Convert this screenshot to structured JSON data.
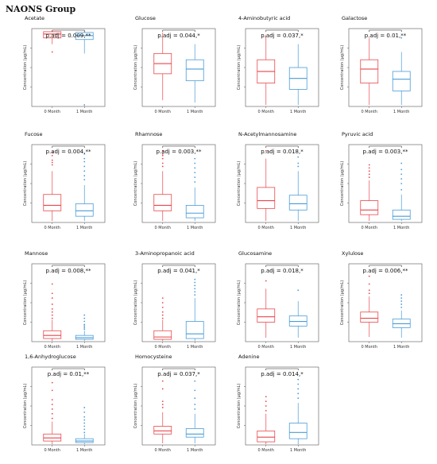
{
  "page_title": "NAONS Group",
  "colors": {
    "month0": "#e8474b",
    "month1": "#4a9cd6",
    "axis": "#333333",
    "bracket": "#222222"
  },
  "chart_data": [
    {
      "type": "box",
      "title": "Acetate",
      "ylabel": "Concentration (µg/mL)",
      "categories": [
        "0 Month",
        "1 Month"
      ],
      "annotation": "p.adj = 0.009,**",
      "ylim": [
        0,
        1
      ],
      "boxes": [
        {
          "q1": 0.88,
          "median": 0.93,
          "q3": 0.96,
          "wlo": 0.8,
          "whi": 0.98,
          "outliers": [
            0.7
          ]
        },
        {
          "q1": 0.86,
          "median": 0.91,
          "q3": 0.95,
          "wlo": 0.68,
          "whi": 0.98,
          "outliers": [
            0.02
          ]
        }
      ]
    },
    {
      "type": "box",
      "title": "Glucose",
      "ylabel": "Concentration (µg/mL)",
      "categories": [
        "0 Month",
        "1 Month"
      ],
      "annotation": "p.adj = 0.044,*",
      "ylim": [
        0,
        1
      ],
      "boxes": [
        {
          "q1": 0.42,
          "median": 0.55,
          "q3": 0.68,
          "wlo": 0.08,
          "whi": 0.95,
          "outliers": []
        },
        {
          "q1": 0.33,
          "median": 0.48,
          "q3": 0.6,
          "wlo": 0.05,
          "whi": 0.8,
          "outliers": []
        }
      ]
    },
    {
      "type": "box",
      "title": "4-Aminobutyric acid",
      "ylabel": "Concentration (µg/mL)",
      "categories": [
        "0 Month",
        "1 Month"
      ],
      "annotation": "p.adj = 0.037,*",
      "ylim": [
        0,
        1
      ],
      "boxes": [
        {
          "q1": 0.3,
          "median": 0.45,
          "q3": 0.6,
          "wlo": 0.02,
          "whi": 0.92,
          "outliers": []
        },
        {
          "q1": 0.22,
          "median": 0.36,
          "q3": 0.5,
          "wlo": 0.02,
          "whi": 0.8,
          "outliers": []
        }
      ]
    },
    {
      "type": "box",
      "title": "Galactose",
      "ylabel": "Concentration (µg/mL)",
      "categories": [
        "0 Month",
        "1 Month"
      ],
      "annotation": "p.adj = 0.01,**",
      "ylim": [
        0,
        1
      ],
      "boxes": [
        {
          "q1": 0.3,
          "median": 0.48,
          "q3": 0.6,
          "wlo": 0.02,
          "whi": 0.88,
          "outliers": []
        },
        {
          "q1": 0.2,
          "median": 0.35,
          "q3": 0.45,
          "wlo": 0.02,
          "whi": 0.7,
          "outliers": [
            0.88
          ]
        }
      ]
    },
    {
      "type": "box",
      "title": "Fucose",
      "ylabel": "Concentration (µg/mL)",
      "categories": [
        "0 Month",
        "1 Month"
      ],
      "annotation": "p.adj = 0.004,**",
      "ylim": [
        0,
        1
      ],
      "boxes": [
        {
          "q1": 0.15,
          "median": 0.22,
          "q3": 0.36,
          "wlo": 0.02,
          "whi": 0.66,
          "outliers": [
            0.74,
            0.77,
            0.8,
            0.86,
            0.9
          ]
        },
        {
          "q1": 0.08,
          "median": 0.15,
          "q3": 0.24,
          "wlo": 0.02,
          "whi": 0.48,
          "outliers": [
            0.55,
            0.6,
            0.66,
            0.72,
            0.78,
            0.82,
            0.88
          ]
        }
      ]
    },
    {
      "type": "box",
      "title": "Rhamnose",
      "ylabel": "Concentration (µg/mL)",
      "categories": [
        "0 Month",
        "1 Month"
      ],
      "annotation": "p.adj = 0.003,**",
      "ylim": [
        0,
        1
      ],
      "boxes": [
        {
          "q1": 0.15,
          "median": 0.22,
          "q3": 0.36,
          "wlo": 0.02,
          "whi": 0.66,
          "outliers": [
            0.72,
            0.76,
            0.82,
            0.86,
            0.88,
            0.92
          ]
        },
        {
          "q1": 0.06,
          "median": 0.12,
          "q3": 0.22,
          "wlo": 0.02,
          "whi": 0.45,
          "outliers": [
            0.52,
            0.58,
            0.64,
            0.7,
            0.76,
            0.82
          ]
        }
      ]
    },
    {
      "type": "box",
      "title": "N-Acetylmannosamine",
      "ylabel": "Concentration (µg/mL)",
      "categories": [
        "0 Month",
        "1 Month"
      ],
      "annotation": "p.adj = 0.018,*",
      "ylim": [
        0,
        1
      ],
      "boxes": [
        {
          "q1": 0.18,
          "median": 0.28,
          "q3": 0.45,
          "wlo": 0.02,
          "whi": 0.82,
          "outliers": [
            0.92
          ]
        },
        {
          "q1": 0.16,
          "median": 0.24,
          "q3": 0.35,
          "wlo": 0.02,
          "whi": 0.66,
          "outliers": [
            0.72,
            0.76,
            0.84
          ]
        }
      ]
    },
    {
      "type": "box",
      "title": "Pyruvic acid",
      "ylabel": "Concentration (µg/mL)",
      "categories": [
        "0 Month",
        "1 Month"
      ],
      "annotation": "p.adj = 0.003,**",
      "ylim": [
        0,
        1
      ],
      "boxes": [
        {
          "q1": 0.1,
          "median": 0.16,
          "q3": 0.28,
          "wlo": 0.02,
          "whi": 0.54,
          "outliers": [
            0.58,
            0.62,
            0.66,
            0.7,
            0.74
          ]
        },
        {
          "q1": 0.04,
          "median": 0.08,
          "q3": 0.16,
          "wlo": 0.02,
          "whi": 0.36,
          "outliers": [
            0.42,
            0.5,
            0.56,
            0.62,
            0.68,
            0.76
          ]
        }
      ]
    },
    {
      "type": "box",
      "title": "Mannose",
      "ylabel": "Concentration (µg/mL)",
      "categories": [
        "0 Month",
        "1 Month"
      ],
      "annotation": "p.adj = 0.008,**",
      "ylim": [
        0,
        1
      ],
      "boxes": [
        {
          "q1": 0.04,
          "median": 0.08,
          "q3": 0.14,
          "wlo": 0.01,
          "whi": 0.28,
          "outliers": [
            0.3,
            0.34,
            0.38,
            0.42,
            0.48,
            0.56,
            0.62,
            0.74
          ]
        },
        {
          "q1": 0.03,
          "median": 0.05,
          "q3": 0.08,
          "wlo": 0.01,
          "whi": 0.14,
          "outliers": [
            0.16,
            0.18,
            0.2,
            0.22,
            0.26,
            0.3,
            0.34
          ]
        }
      ]
    },
    {
      "type": "box",
      "title": "3-Aminopropanoic acid",
      "ylabel": "Concentration (µg/mL)",
      "categories": [
        "0 Month",
        "1 Month"
      ],
      "annotation": "p.adj = 0.041,*",
      "ylim": [
        0,
        1
      ],
      "boxes": [
        {
          "q1": 0.03,
          "median": 0.06,
          "q3": 0.14,
          "wlo": 0.01,
          "whi": 0.28,
          "outliers": [
            0.3,
            0.34,
            0.38,
            0.44,
            0.5,
            0.56
          ]
        },
        {
          "q1": 0.04,
          "median": 0.1,
          "q3": 0.26,
          "wlo": 0.01,
          "whi": 0.56,
          "outliers": [
            0.6,
            0.64,
            0.68,
            0.72,
            0.76,
            0.8
          ]
        }
      ]
    },
    {
      "type": "box",
      "title": "Glucosamine",
      "ylabel": "Concentration (µg/mL)",
      "categories": [
        "0 Month",
        "1 Month"
      ],
      "annotation": "p.adj = 0.018,*",
      "ylim": [
        0,
        1
      ],
      "boxes": [
        {
          "q1": 0.25,
          "median": 0.32,
          "q3": 0.42,
          "wlo": 0.05,
          "whi": 0.68,
          "outliers": [
            0.78
          ]
        },
        {
          "q1": 0.2,
          "median": 0.26,
          "q3": 0.33,
          "wlo": 0.05,
          "whi": 0.52,
          "outliers": [
            0.66
          ]
        }
      ]
    },
    {
      "type": "box",
      "title": "Xylulose",
      "ylabel": "Concentration (µg/mL)",
      "categories": [
        "0 Month",
        "1 Month"
      ],
      "annotation": "p.adj = 0.006,**",
      "ylim": [
        0,
        1
      ],
      "boxes": [
        {
          "q1": 0.25,
          "median": 0.3,
          "q3": 0.38,
          "wlo": 0.06,
          "whi": 0.58,
          "outliers": [
            0.62,
            0.66,
            0.74,
            0.84
          ]
        },
        {
          "q1": 0.18,
          "median": 0.23,
          "q3": 0.29,
          "wlo": 0.05,
          "whi": 0.4,
          "outliers": [
            0.44,
            0.48,
            0.52,
            0.56,
            0.6
          ]
        }
      ]
    },
    {
      "type": "box",
      "title": "1,6-Anhydroglucose",
      "ylabel": "Concentration (µg/mL)",
      "categories": [
        "0 Month",
        "1 Month"
      ],
      "annotation": "p.adj = 0.01,**",
      "ylim": [
        0,
        1
      ],
      "boxes": [
        {
          "q1": 0.05,
          "median": 0.09,
          "q3": 0.14,
          "wlo": 0.01,
          "whi": 0.3,
          "outliers": [
            0.34,
            0.4,
            0.46,
            0.52,
            0.58,
            0.7,
            0.8
          ]
        },
        {
          "q1": 0.03,
          "median": 0.05,
          "q3": 0.08,
          "wlo": 0.01,
          "whi": 0.14,
          "outliers": [
            0.16,
            0.2,
            0.24,
            0.28,
            0.32,
            0.36,
            0.42,
            0.48
          ]
        }
      ]
    },
    {
      "type": "box",
      "title": "Homocysteine",
      "ylabel": "Concentration (µg/mL)",
      "categories": [
        "0 Month",
        "1 Month"
      ],
      "annotation": "p.adj = 0.037,*",
      "ylim": [
        0,
        1
      ],
      "boxes": [
        {
          "q1": 0.14,
          "median": 0.18,
          "q3": 0.24,
          "wlo": 0.02,
          "whi": 0.42,
          "outliers": [
            0.48,
            0.52,
            0.56,
            0.72,
            0.82
          ]
        },
        {
          "q1": 0.1,
          "median": 0.14,
          "q3": 0.21,
          "wlo": 0.02,
          "whi": 0.4,
          "outliers": [
            0.46,
            0.52,
            0.6,
            0.7,
            0.82
          ]
        }
      ]
    },
    {
      "type": "box",
      "title": "Adenine",
      "ylabel": "Concentration (µg/mL)",
      "categories": [
        "0 Month",
        "1 Month"
      ],
      "annotation": "p.adj = 0.014,*",
      "ylim": [
        0,
        1
      ],
      "boxes": [
        {
          "q1": 0.04,
          "median": 0.1,
          "q3": 0.18,
          "wlo": 0.01,
          "whi": 0.4,
          "outliers": [
            0.44,
            0.5,
            0.56,
            0.62
          ]
        },
        {
          "q1": 0.08,
          "median": 0.16,
          "q3": 0.28,
          "wlo": 0.01,
          "whi": 0.54,
          "outliers": [
            0.6,
            0.66,
            0.72,
            0.78,
            0.84
          ]
        }
      ]
    }
  ]
}
